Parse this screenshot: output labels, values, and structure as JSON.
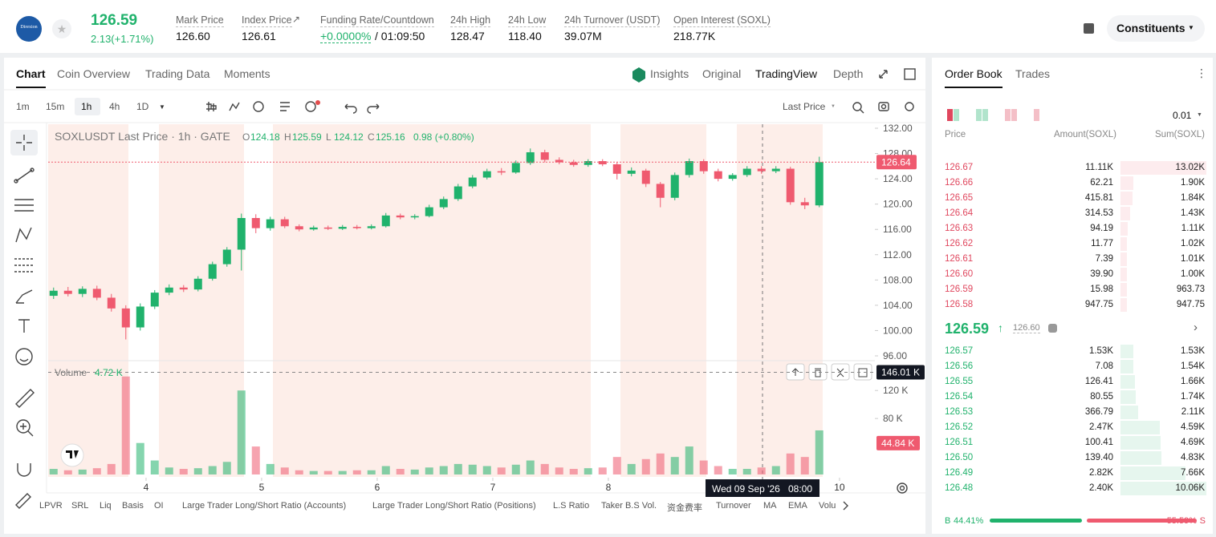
{
  "header": {
    "logo": "Direxion",
    "price": "126.59",
    "change": "2.13(+1.71%)",
    "stats": [
      {
        "label": "Mark Price",
        "value": "126.60"
      },
      {
        "label": "Index Price",
        "value": "126.61"
      },
      {
        "label": "Funding Rate/Countdown",
        "value": "+0.0000%",
        "extra": "/ 01:09:50"
      },
      {
        "label": "24h High",
        "value": "128.47"
      },
      {
        "label": "24h Low",
        "value": "118.40"
      },
      {
        "label": "24h Turnover (USDT)",
        "value": "39.07M"
      },
      {
        "label": "Open Interest (SOXL)",
        "value": "218.77K"
      }
    ],
    "constituents": "Constituents"
  },
  "tabs": [
    "Chart",
    "Coin Overview",
    "Trading Data",
    "Moments"
  ],
  "views": [
    "Insights",
    "Original",
    "TradingView",
    "Depth"
  ],
  "intervals": [
    "1m",
    "15m",
    "1h",
    "4h",
    "1D"
  ],
  "price_source": "Last Price",
  "indicators": [
    "LPVR",
    "SRL",
    "Liq",
    "Basis",
    "OI",
    "Large Trader Long/Short Ratio (Accounts)",
    "Large Trader Long/Short Ratio (Positions)",
    "L.S Ratio",
    "Taker B.S Vol.",
    "资金费率",
    "Turnover",
    "MA",
    "EMA",
    "Volu"
  ],
  "chart_data": {
    "type": "candlestick",
    "legend": {
      "symbol": "SOXLUSDT Last Price · 1h · GATE",
      "items": [
        {
          "key": "O",
          "value": "124.18"
        },
        {
          "key": "H",
          "value": "125.59"
        },
        {
          "key": "L",
          "value": "124.12"
        },
        {
          "key": "C",
          "value": "125.16"
        }
      ],
      "change": "0.98 (+0.80%)"
    },
    "volume_label": "Volume",
    "volume_value": "4.72 K",
    "up_color": "#20b26c",
    "down_color": "#ef5a6f",
    "xlim": [
      3.153,
      10.306
    ],
    "xticks": [
      4,
      5,
      6,
      7,
      8,
      10
    ],
    "ylim": [
      96,
      132
    ],
    "yticks": [
      {
        "value": 132,
        "label": "132.00"
      },
      {
        "value": 128,
        "label": "128.00"
      },
      {
        "value": 124,
        "label": "124.00"
      },
      {
        "value": 120,
        "label": "120.00"
      },
      {
        "value": 116,
        "label": "116.00"
      },
      {
        "value": 112,
        "label": "112.00"
      },
      {
        "value": 108,
        "label": "108.00"
      },
      {
        "value": 104,
        "label": "104.00"
      },
      {
        "value": 100,
        "label": "100.00"
      },
      {
        "value": 96,
        "label": "96.00"
      }
    ],
    "vol_ylim": [
      0,
      150
    ],
    "vol_yticks": [
      {
        "value": 120,
        "label": "120 K"
      },
      {
        "value": 80,
        "label": "80 K"
      }
    ],
    "last_price": {
      "value": 126.64,
      "label": "126.64"
    },
    "vol_marker": {
      "value": 146.01,
      "label": "146.01 K"
    },
    "vol_last": {
      "value": 44.84,
      "label": "44.84 K"
    },
    "crosshair": {
      "date": "Wed 09 Sep '26",
      "time": "08:00"
    },
    "x": [
      3.2,
      3.325,
      3.45,
      3.575,
      3.7,
      3.825,
      3.95,
      4.075,
      4.2,
      4.325,
      4.45,
      4.575,
      4.7,
      4.825,
      4.95,
      5.075,
      5.2,
      5.325,
      5.45,
      5.575,
      5.7,
      5.825,
      5.95,
      6.075,
      6.2,
      6.325,
      6.45,
      6.575,
      6.7,
      6.825,
      6.95,
      7.075,
      7.2,
      7.325,
      7.45,
      7.575,
      7.7,
      7.825,
      7.95,
      8.075,
      8.2,
      8.325,
      8.45,
      8.575,
      8.7,
      8.825,
      8.95,
      9.075,
      9.2,
      9.325,
      9.45,
      9.575,
      9.7,
      9.825
    ],
    "ohlc": [
      [
        105.5,
        106.8,
        105,
        106.3
      ],
      [
        106.3,
        106.9,
        105.4,
        105.8
      ],
      [
        105.8,
        107,
        105.3,
        106.6
      ],
      [
        106.6,
        107.1,
        104.8,
        105.2
      ],
      [
        105.2,
        105.8,
        103,
        103.5
      ],
      [
        103.5,
        104,
        98.6,
        100.5
      ],
      [
        100.5,
        104.3,
        100,
        103.8
      ],
      [
        103.8,
        106.4,
        103.4,
        106
      ],
      [
        106,
        107.3,
        105.6,
        106.8
      ],
      [
        106.8,
        107.2,
        106.1,
        106.5
      ],
      [
        106.5,
        108.6,
        106.2,
        108.2
      ],
      [
        108.2,
        110.9,
        107.9,
        110.5
      ],
      [
        110.5,
        113.2,
        110.1,
        112.8
      ],
      [
        112.8,
        118.5,
        109.5,
        117.8
      ],
      [
        117.8,
        118.4,
        115.4,
        116.2
      ],
      [
        116.2,
        118,
        115.8,
        117.6
      ],
      [
        117.6,
        118,
        116.2,
        116.5
      ],
      [
        116.5,
        116.8,
        115.7,
        116
      ],
      [
        116,
        116.6,
        115.8,
        116.3
      ],
      [
        116.3,
        116.6,
        115.9,
        116.1
      ],
      [
        116.1,
        116.7,
        115.9,
        116.4
      ],
      [
        116.4,
        116.7,
        116,
        116.2
      ],
      [
        116.2,
        116.8,
        116,
        116.5
      ],
      [
        116.5,
        118.6,
        116.3,
        118.2
      ],
      [
        118.2,
        118.5,
        117.6,
        117.9
      ],
      [
        117.9,
        118.4,
        117.6,
        118.1
      ],
      [
        118.1,
        119.9,
        117.9,
        119.5
      ],
      [
        119.5,
        121.2,
        119.2,
        120.8
      ],
      [
        120.8,
        123.2,
        120.5,
        122.8
      ],
      [
        122.8,
        124.6,
        122.5,
        124.2
      ],
      [
        124.2,
        125.6,
        123.9,
        125.2
      ],
      [
        125.2,
        125.7,
        124.6,
        125
      ],
      [
        125,
        126.9,
        124.8,
        126.5
      ],
      [
        126.5,
        128.8,
        126.2,
        128.2
      ],
      [
        128.2,
        128.6,
        126.6,
        127
      ],
      [
        127,
        127.4,
        126.3,
        126.6
      ],
      [
        126.6,
        127,
        125.9,
        126.2
      ],
      [
        126.2,
        127.1,
        125.9,
        126.8
      ],
      [
        126.8,
        127.1,
        126,
        126.3
      ],
      [
        126.3,
        126.6,
        123.9,
        124.8
      ],
      [
        124.8,
        125.8,
        124.4,
        125.3
      ],
      [
        125.3,
        125.6,
        122.7,
        123.2
      ],
      [
        123.2,
        123.5,
        119.5,
        121
      ],
      [
        121,
        125,
        120.6,
        124.6
      ],
      [
        124.6,
        127.2,
        124.2,
        126.8
      ],
      [
        126.8,
        127.1,
        124.8,
        125.2
      ],
      [
        125.2,
        125.6,
        123.6,
        124
      ],
      [
        124,
        124.9,
        123.7,
        124.6
      ],
      [
        124.6,
        126,
        124.3,
        125.6
      ],
      [
        125.6,
        126,
        124.8,
        125.2
      ],
      [
        125.2,
        126,
        124.9,
        125.6
      ],
      [
        125.6,
        125.9,
        119.9,
        120.3
      ],
      [
        120.3,
        121,
        119.2,
        119.8
      ],
      [
        119.8,
        127.5,
        119.5,
        126.64
      ]
    ],
    "volume": [
      8,
      6,
      7,
      9,
      15,
      140,
      45,
      20,
      10,
      8,
      9,
      12,
      18,
      120,
      40,
      15,
      10,
      6,
      5,
      5,
      5,
      6,
      6,
      12,
      8,
      7,
      10,
      12,
      15,
      14,
      12,
      10,
      14,
      20,
      15,
      10,
      8,
      9,
      10,
      25,
      15,
      22,
      30,
      25,
      40,
      20,
      12,
      8,
      8,
      10,
      12,
      30,
      25,
      63
    ]
  },
  "order_book": {
    "tabs": [
      "Order Book",
      "Trades"
    ],
    "precision": "0.01",
    "headers": [
      "Price",
      "Amount(SOXL)",
      "Sum(SOXL)"
    ],
    "asks": [
      [
        "126.67",
        "11.11K",
        "13.02K"
      ],
      [
        "126.66",
        "62.21",
        "1.90K"
      ],
      [
        "126.65",
        "415.81",
        "1.84K"
      ],
      [
        "126.64",
        "314.53",
        "1.43K"
      ],
      [
        "126.63",
        "94.19",
        "1.11K"
      ],
      [
        "126.62",
        "11.77",
        "1.02K"
      ],
      [
        "126.61",
        "7.39",
        "1.01K"
      ],
      [
        "126.60",
        "39.90",
        "1.00K"
      ],
      [
        "126.59",
        "15.98",
        "963.73"
      ],
      [
        "126.58",
        "947.75",
        "947.75"
      ]
    ],
    "mid_price": "126.59",
    "mark_price": "126.60",
    "bids": [
      [
        "126.57",
        "1.53K",
        "1.53K"
      ],
      [
        "126.56",
        "7.08",
        "1.54K"
      ],
      [
        "126.55",
        "126.41",
        "1.66K"
      ],
      [
        "126.54",
        "80.55",
        "1.74K"
      ],
      [
        "126.53",
        "366.79",
        "2.11K"
      ],
      [
        "126.52",
        "2.47K",
        "4.59K"
      ],
      [
        "126.51",
        "100.41",
        "4.69K"
      ],
      [
        "126.50",
        "139.40",
        "4.83K"
      ],
      [
        "126.49",
        "2.82K",
        "7.66K"
      ],
      [
        "126.48",
        "2.40K",
        "10.06K"
      ]
    ],
    "ratio": {
      "buy_label": "B",
      "sell_label": "S",
      "values": [
        44.41,
        55.59
      ],
      "value_labels": [
        "44.41%",
        "55.59%"
      ]
    }
  }
}
